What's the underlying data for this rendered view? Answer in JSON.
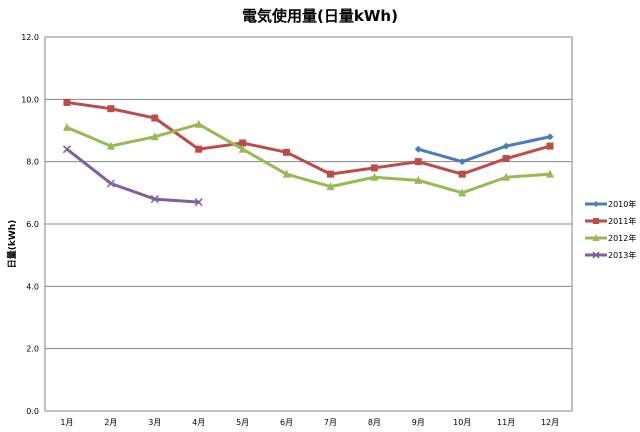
{
  "chart_data": {
    "type": "line",
    "title": "電気使用量(日量kWh)",
    "xlabel": "",
    "ylabel": "日量(kWh)",
    "categories": [
      "1月",
      "2月",
      "3月",
      "4月",
      "5月",
      "6月",
      "7月",
      "8月",
      "9月",
      "10月",
      "11月",
      "12月"
    ],
    "ylim": [
      0,
      12
    ],
    "yticks": [
      "0.0",
      "2.0",
      "4.0",
      "6.0",
      "8.0",
      "10.0",
      "12.0"
    ],
    "grid": true,
    "legend_position": "right",
    "series": [
      {
        "name": "2010年",
        "color": "#4a7ebb",
        "marker": "diamond",
        "values": [
          null,
          null,
          null,
          null,
          null,
          null,
          null,
          null,
          8.4,
          8.0,
          8.5,
          8.8
        ]
      },
      {
        "name": "2011年",
        "color": "#be4b48",
        "marker": "square",
        "values": [
          9.9,
          9.7,
          9.4,
          8.4,
          8.6,
          8.3,
          7.6,
          7.8,
          8.0,
          7.6,
          8.1,
          8.5
        ]
      },
      {
        "name": "2012年",
        "color": "#98b954",
        "marker": "triangle",
        "values": [
          9.1,
          8.5,
          8.8,
          9.2,
          8.4,
          7.6,
          7.2,
          7.5,
          7.4,
          7.0,
          7.5,
          7.6
        ]
      },
      {
        "name": "2013年",
        "color": "#7d60a0",
        "marker": "x",
        "values": [
          8.4,
          7.3,
          6.8,
          6.7,
          null,
          null,
          null,
          null,
          null,
          null,
          null,
          null
        ]
      }
    ]
  }
}
